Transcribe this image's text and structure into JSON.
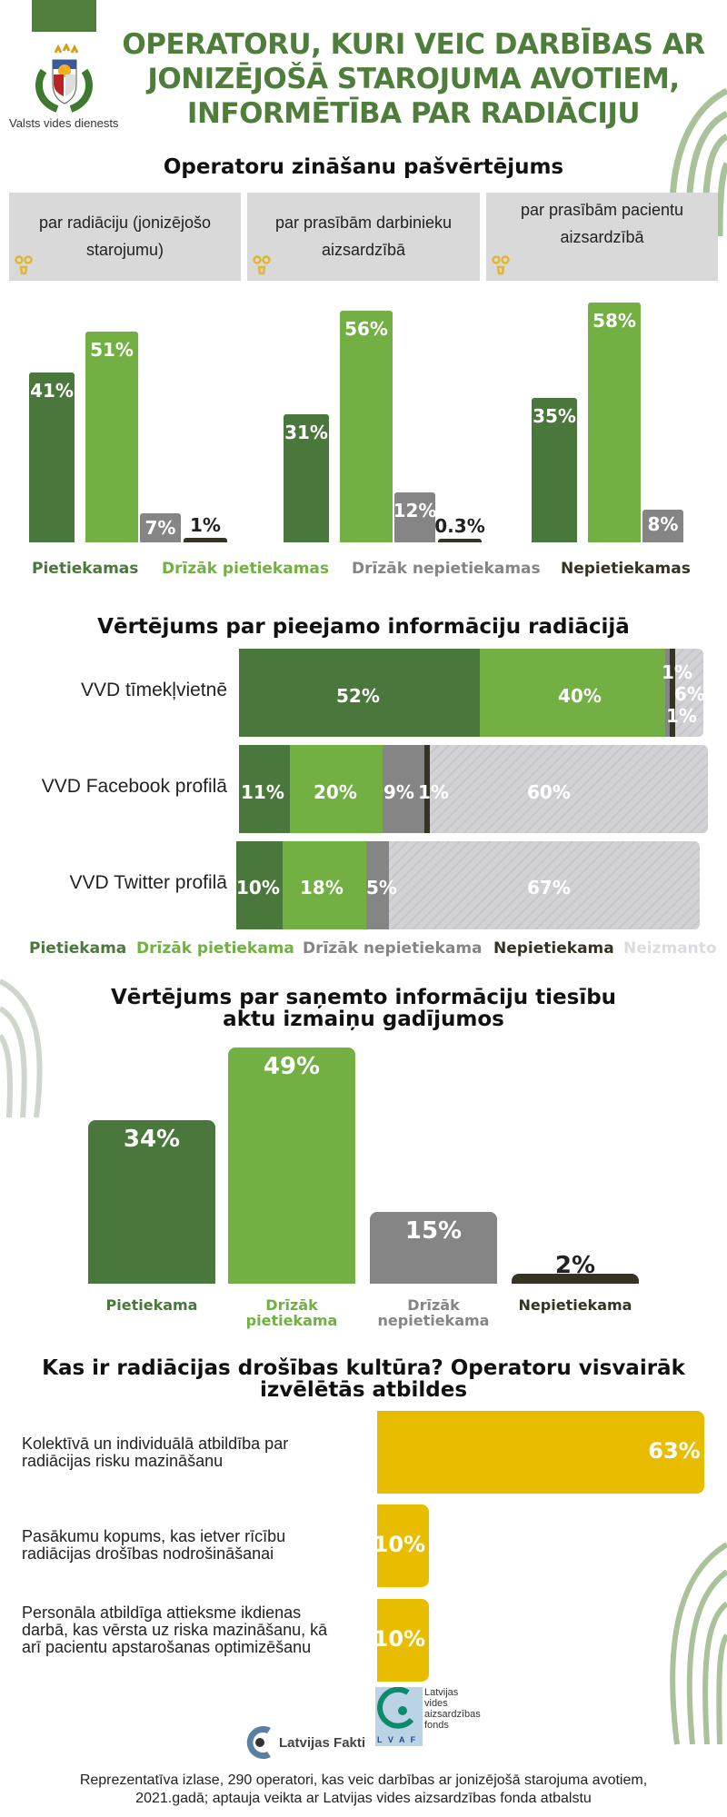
{
  "header": {
    "title_lines": [
      "OPERATORU, KURI VEIC DARBĪBAS AR",
      "JONIZĒJOŠĀ STAROJUMA AVOTIEM,",
      "INFORMĒTĪBA PAR RADIĀCIJU"
    ],
    "org_name": "Valsts vides dienests"
  },
  "colors": {
    "dark_green": "#4a773b",
    "light_green": "#72b043",
    "gray": "#858585",
    "black": "#353324",
    "neutral": "#cfcfd4",
    "yellow": "#e8bd00",
    "title_green": "#4f7d3b"
  },
  "section1": {
    "title": "Operatoru zināšanu pašvērtējums"
  },
  "section2": {
    "title": "Vērtējums par pieejamo informāciju radiācijā"
  },
  "section3": {
    "title_lines": [
      "Vērtējums par saņemto informāciju tiesību",
      "aktu izmaiņu gadījumos"
    ]
  },
  "section4": {
    "title_lines": [
      "Kas ir radiācijas drošības kultūra?  Operatoru visvairāk",
      "izvēlētās atbildes"
    ]
  },
  "chart_data": [
    {
      "type": "bar",
      "title": "Operatoru zināšanu pašvērtējums",
      "categories": [
        "par radiāciju (jonizējošo starojumu)",
        "par prasībām darbinieku aizsardzībā",
        "par prasībām pacientu aizsardzībā"
      ],
      "series": [
        {
          "name": "Pietiekamas",
          "values": [
            41,
            31,
            35
          ],
          "labels": [
            "41%",
            "31%",
            "35%"
          ]
        },
        {
          "name": "Drīzāk pietiekamas",
          "values": [
            51,
            56,
            58
          ],
          "labels": [
            "51%",
            "56%",
            "58%"
          ]
        },
        {
          "name": "Drīzāk nepietiekamas",
          "values": [
            7,
            12,
            8
          ],
          "labels": [
            "7%",
            "12%",
            "8%"
          ]
        },
        {
          "name": "Nepietiekamas",
          "values": [
            1,
            0.3,
            0
          ],
          "labels": [
            "1%",
            "0.3%",
            ""
          ]
        }
      ],
      "ylim": [
        0,
        60
      ]
    },
    {
      "type": "bar",
      "stacked": true,
      "orientation": "horizontal",
      "title": "Vērtējums par pieejamo informāciju radiācijā",
      "categories": [
        "VVD tīmekļvietnē",
        "VVD Facebook profilā",
        "VVD Twitter profilā"
      ],
      "series": [
        {
          "name": "Pietiekama",
          "values": [
            52,
            11,
            10
          ],
          "labels": [
            "52%",
            "11%",
            "10%"
          ]
        },
        {
          "name": "Drīzāk pietiekama",
          "values": [
            40,
            20,
            18
          ],
          "labels": [
            "40%",
            "20%",
            "18%"
          ]
        },
        {
          "name": "Drīzāk nepietiekama",
          "values": [
            1,
            9,
            5
          ],
          "labels": [
            "1%",
            "9%",
            "5%"
          ]
        },
        {
          "name": "Nepietiekama",
          "values": [
            1,
            1,
            0
          ],
          "labels": [
            "1%",
            "1%",
            ""
          ]
        },
        {
          "name": "Neizmanto",
          "values": [
            6,
            60,
            67
          ],
          "labels": [
            "6%",
            "60%",
            "67%"
          ]
        }
      ],
      "xlim": [
        0,
        100
      ]
    },
    {
      "type": "bar",
      "title": "Vērtējums par saņemto informāciju tiesību aktu izmaiņu gadījumos",
      "categories": [
        "Pietiekama",
        "Drīzāk pietiekama",
        "Drīzāk nepietiekama",
        "Nepietiekama"
      ],
      "values": [
        34,
        49,
        15,
        2
      ],
      "labels": [
        "34%",
        "49%",
        "15%",
        "2%"
      ],
      "ylim": [
        0,
        50
      ]
    },
    {
      "type": "bar",
      "orientation": "horizontal",
      "title": "Kas ir radiācijas drošības kultūra? Operatoru visvairāk izvēlētās atbildes",
      "categories": [
        "Kolektīvā un individuālā atbildība par radiācijas risku mazināšanu",
        "Pasākumu kopums, kas ietver rīcību radiācijas drošības nodrošināšanai",
        "Personāla atbildīga attieksme ikdienas darbā, kas vērsta uz riska mazināšanu, kā arī pacientu apstarošanas optimizēšanu"
      ],
      "values": [
        63,
        10,
        10
      ],
      "labels": [
        "63%",
        "10%",
        "10%"
      ],
      "xlim": [
        0,
        63
      ]
    }
  ],
  "footer": {
    "logo1": "Latvijas Fakti",
    "logo2_lines": [
      "Latvijas",
      "vides",
      "aizsardzības",
      "fonds"
    ],
    "logo2_abbr": "L V A F",
    "note_lines": [
      "Reprezentatīva izlase, 290 operatori, kas veic darbības ar jonizējošā starojuma avotiem,",
      "2021.gadā; aptauja veikta ar Latvijas vides aizsardzības fonda atbalstu"
    ]
  }
}
